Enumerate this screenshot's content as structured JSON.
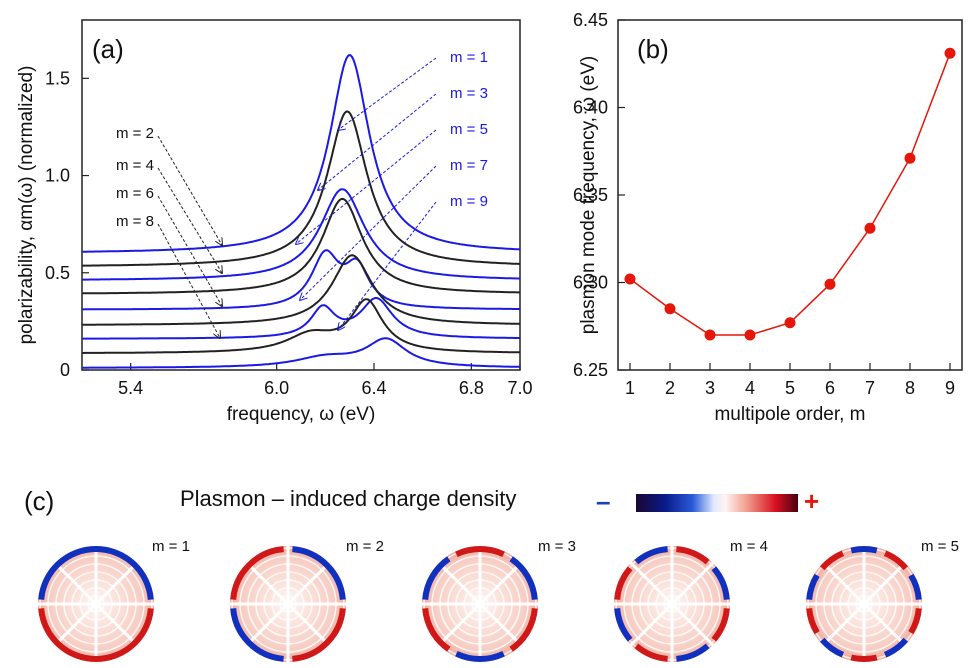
{
  "colors": {
    "blue": "#1a1ae6",
    "black": "#222222",
    "red": "#e3170a",
    "minus": "#1a3fbf",
    "plus": "#e3170a"
  },
  "panel_labels": {
    "a": "(a)",
    "b": "(b)",
    "c": "(c)"
  },
  "panel_c": {
    "title": "Plasmon – induced charge density",
    "colorbar_minus": "–",
    "colorbar_plus": "+",
    "modes": [
      "m = 1",
      "m = 2",
      "m = 3",
      "m = 4",
      "m = 5"
    ]
  },
  "chart_data": [
    {
      "type": "line",
      "panel": "a",
      "xlabel": "frequency, ω (eV)",
      "ylabel": "polarizability, αm(ω)  (normalized)",
      "xlim": [
        5.2,
        7.0
      ],
      "ylim": [
        0,
        1.8
      ],
      "xticks": [
        "5.4",
        "6.0",
        "6.4",
        "6.8",
        "7.0"
      ],
      "xtick_values": [
        5.4,
        6.0,
        6.4,
        6.8,
        7.0
      ],
      "yticks": [
        "0",
        "0.5",
        "1.0",
        "1.5"
      ],
      "ytick_values": [
        0,
        0.5,
        1.0,
        1.5
      ],
      "grid": false,
      "legend_odd": [
        "m = 1",
        "m = 3",
        "m = 5",
        "m = 7",
        "m = 9"
      ],
      "legend_even": [
        "m = 2",
        "m = 4",
        "m = 6",
        "m = 8"
      ],
      "series": [
        {
          "m": 1,
          "color": "blue",
          "baseline": 0.6,
          "peaks": [
            {
              "x": 6.3,
              "amp": 1.02,
              "w": 0.1
            }
          ]
        },
        {
          "m": 2,
          "color": "black",
          "baseline": 0.53,
          "peaks": [
            {
              "x": 6.29,
              "amp": 0.8,
              "w": 0.1
            }
          ]
        },
        {
          "m": 3,
          "color": "blue",
          "baseline": 0.46,
          "peaks": [
            {
              "x": 6.27,
              "amp": 0.47,
              "w": 0.11
            }
          ]
        },
        {
          "m": 4,
          "color": "black",
          "baseline": 0.39,
          "peaks": [
            {
              "x": 6.27,
              "amp": 0.49,
              "w": 0.1
            }
          ]
        },
        {
          "m": 5,
          "color": "blue",
          "baseline": 0.31,
          "peaks": [
            {
              "x": 6.2,
              "amp": 0.27,
              "w": 0.07
            },
            {
              "x": 6.33,
              "amp": 0.2,
              "w": 0.06
            }
          ]
        },
        {
          "m": 6,
          "color": "black",
          "baseline": 0.23,
          "peaks": [
            {
              "x": 6.31,
              "amp": 0.36,
              "w": 0.1
            }
          ]
        },
        {
          "m": 7,
          "color": "blue",
          "baseline": 0.16,
          "peaks": [
            {
              "x": 6.19,
              "amp": 0.15,
              "w": 0.06
            },
            {
              "x": 6.41,
              "amp": 0.2,
              "w": 0.08
            }
          ]
        },
        {
          "m": 8,
          "color": "black",
          "baseline": 0.085,
          "peaks": [
            {
              "x": 6.14,
              "amp": 0.09,
              "w": 0.12
            },
            {
              "x": 6.37,
              "amp": 0.26,
              "w": 0.08
            }
          ]
        },
        {
          "m": 9,
          "color": "blue",
          "baseline": 0.01,
          "peaks": [
            {
              "x": 6.2,
              "amp": 0.05,
              "w": 0.15
            },
            {
              "x": 6.45,
              "amp": 0.14,
              "w": 0.1
            }
          ]
        }
      ]
    },
    {
      "type": "line",
      "panel": "b",
      "xlabel": "multipole order, m",
      "ylabel": "plasmon mode frequency, ω (eV)",
      "xlim": [
        1,
        9
      ],
      "ylim": [
        6.25,
        6.45
      ],
      "xticks": [
        "1",
        "2",
        "3",
        "4",
        "5",
        "6",
        "7",
        "8",
        "9"
      ],
      "yticks": [
        "6.25",
        "6.30",
        "6.35",
        "6.40",
        "6.45"
      ],
      "ytick_values": [
        6.25,
        6.3,
        6.35,
        6.4,
        6.45
      ],
      "grid": false,
      "markers": true,
      "x": [
        1,
        2,
        3,
        4,
        5,
        6,
        7,
        8,
        9
      ],
      "y": [
        6.302,
        6.285,
        6.27,
        6.27,
        6.277,
        6.299,
        6.331,
        6.371,
        6.431
      ]
    }
  ]
}
